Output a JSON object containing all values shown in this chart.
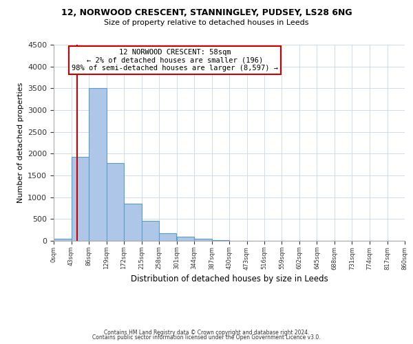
{
  "title": "12, NORWOOD CRESCENT, STANNINGLEY, PUDSEY, LS28 6NG",
  "subtitle": "Size of property relative to detached houses in Leeds",
  "xlabel": "Distribution of detached houses by size in Leeds",
  "ylabel": "Number of detached properties",
  "bin_edges": [
    0,
    43,
    86,
    129,
    172,
    215,
    258,
    301,
    344,
    387,
    430,
    473,
    516,
    559,
    602,
    645,
    688,
    731,
    774,
    817,
    860
  ],
  "bar_heights": [
    50,
    1920,
    3500,
    1780,
    850,
    460,
    175,
    90,
    40,
    10,
    0,
    0,
    0,
    0,
    0,
    0,
    0,
    0,
    0,
    0
  ],
  "bar_color": "#aec6e8",
  "bar_edgecolor": "#5a9ec9",
  "bar_linewidth": 0.8,
  "property_line_x": 58,
  "property_line_color": "#cc0000",
  "ylim": [
    0,
    4500
  ],
  "annotation_box_text": "12 NORWOOD CRESCENT: 58sqm\n← 2% of detached houses are smaller (196)\n98% of semi-detached houses are larger (8,597) →",
  "annotation_box_edgecolor": "#cc0000",
  "annotation_box_facecolor": "#ffffff",
  "footer_line1": "Contains HM Land Registry data © Crown copyright and database right 2024.",
  "footer_line2": "Contains public sector information licensed under the Open Government Licence v3.0.",
  "background_color": "#ffffff",
  "grid_color": "#c8d8e8",
  "tick_labels": [
    "0sqm",
    "43sqm",
    "86sqm",
    "129sqm",
    "172sqm",
    "215sqm",
    "258sqm",
    "301sqm",
    "344sqm",
    "387sqm",
    "430sqm",
    "473sqm",
    "516sqm",
    "559sqm",
    "602sqm",
    "645sqm",
    "688sqm",
    "731sqm",
    "774sqm",
    "817sqm",
    "860sqm"
  ]
}
